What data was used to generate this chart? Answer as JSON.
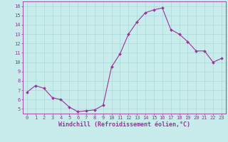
{
  "x": [
    0,
    1,
    2,
    3,
    4,
    5,
    6,
    7,
    8,
    9,
    10,
    11,
    12,
    13,
    14,
    15,
    16,
    17,
    18,
    19,
    20,
    21,
    22,
    23
  ],
  "y": [
    6.8,
    7.5,
    7.2,
    6.2,
    6.0,
    5.2,
    4.7,
    4.8,
    4.9,
    5.4,
    9.5,
    10.9,
    13.0,
    14.3,
    15.3,
    15.6,
    15.8,
    13.5,
    13.0,
    12.2,
    11.2,
    11.2,
    10.0,
    10.4
  ],
  "line_color": "#993399",
  "marker_color": "#993399",
  "bg_color": "#c8ecec",
  "grid_color": "#aad8d8",
  "xlabel": "Windchill (Refroidissement éolien,°C)",
  "xlabel_color": "#993399",
  "tick_color": "#993399",
  "spine_color": "#993399",
  "ylim": [
    4.5,
    16.5
  ],
  "xlim": [
    -0.5,
    23.5
  ],
  "yticks": [
    5,
    6,
    7,
    8,
    9,
    10,
    11,
    12,
    13,
    14,
    15,
    16
  ],
  "xticks": [
    0,
    1,
    2,
    3,
    4,
    5,
    6,
    7,
    8,
    9,
    10,
    11,
    12,
    13,
    14,
    15,
    16,
    17,
    18,
    19,
    20,
    21,
    22,
    23
  ],
  "tick_fontsize": 5.0,
  "xlabel_fontsize": 6.0
}
